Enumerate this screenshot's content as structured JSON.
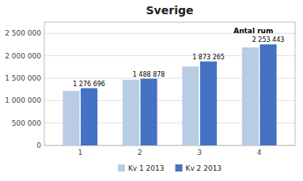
{
  "chart_data": {
    "type": "bar",
    "title": "Sverige",
    "categories": [
      "1",
      "2",
      "3",
      "4"
    ],
    "series": [
      {
        "name": "Kv 1 2013",
        "color": "#b8cce4",
        "values": [
          1215000,
          1465000,
          1760000,
          2185000
        ]
      },
      {
        "name": "Kv 2 2013",
        "color": "#4472c4",
        "values": [
          1276696,
          1488878,
          1873265,
          2253443
        ],
        "data_labels": true,
        "value_labels": [
          "1 276 696",
          "1 488 878",
          "1 873 265",
          "2 253 443"
        ]
      }
    ],
    "annotation": "Antal rum",
    "ylim": [
      0,
      2750000
    ],
    "yticks": [
      0,
      {
        "value": 500000,
        "label": "500 000"
      },
      {
        "value": 1000000,
        "label": "1 000 000"
      },
      {
        "value": 1500000,
        "label": "1 500 000"
      },
      {
        "value": 2000000,
        "label": "2 000 000"
      },
      {
        "value": 2500000,
        "label": "2 500 000"
      }
    ],
    "grid": true,
    "legend": "bottom"
  }
}
